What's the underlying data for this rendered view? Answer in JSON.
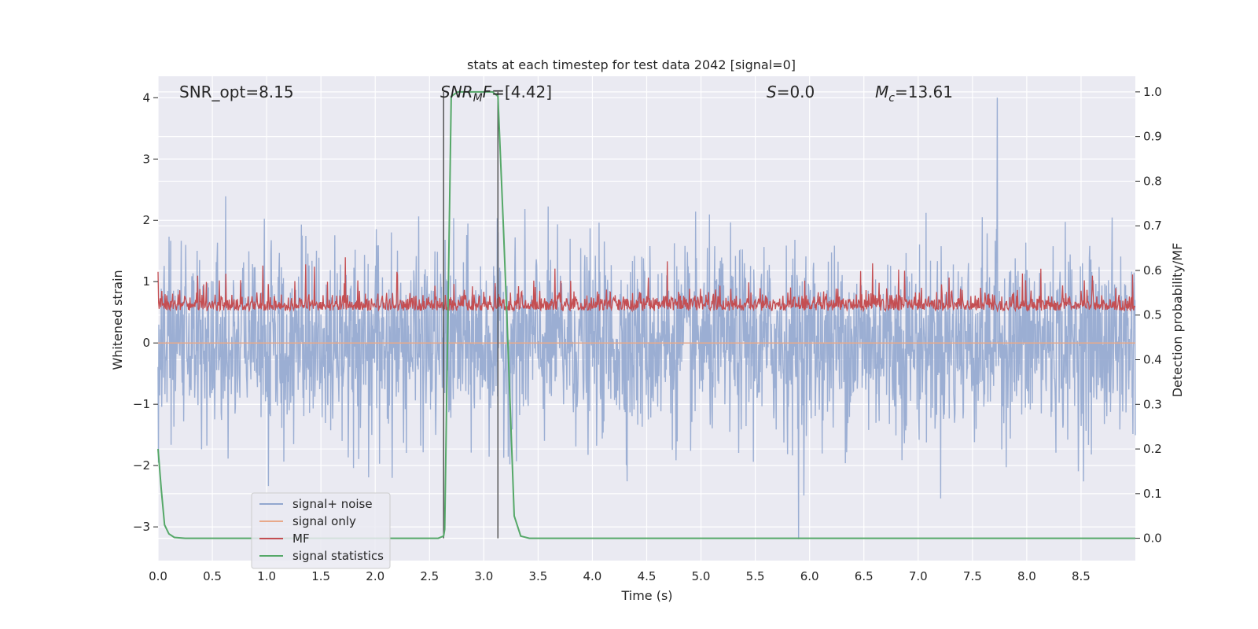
{
  "chart_data": {
    "type": "line",
    "title": "stats at each timestep for test data 2042 [signal=0]",
    "xlabel": "Time (s)",
    "ylabel_left": "Whitened strain",
    "ylabel_right": "Detection probability/MF",
    "xlim": [
      0,
      9.0
    ],
    "ylim_left": [
      -3.55,
      4.35
    ],
    "ylim_right": [
      -0.05,
      1.035
    ],
    "x_ticks": [
      "0.0",
      "0.5",
      "1.0",
      "1.5",
      "2.0",
      "2.5",
      "3.0",
      "3.5",
      "4.0",
      "4.5",
      "5.0",
      "5.5",
      "6.0",
      "6.5",
      "7.0",
      "7.5",
      "8.0",
      "8.5"
    ],
    "y_left_ticks": [
      "−3",
      "−2",
      "−1",
      "0",
      "1",
      "2",
      "3",
      "4"
    ],
    "y_right_ticks": [
      "0.0",
      "0.1",
      "0.2",
      "0.3",
      "0.4",
      "0.5",
      "0.6",
      "0.7",
      "0.8",
      "0.9",
      "1.0"
    ],
    "grid": true,
    "legend_position": "lower-left",
    "annotations": {
      "snr_opt": "SNR_opt=8.15",
      "snr_mf_sym": "SNR",
      "snr_mf_sub": "M",
      "snr_mf_sym2": "F",
      "snr_mf_val": "=[4.42]",
      "s_sym": "S",
      "s_val": "=0.0",
      "mc_sym": "M",
      "mc_sub": "c",
      "mc_val": "=13.61"
    },
    "vertical_markers_x": [
      2.63,
      3.13
    ],
    "series": [
      {
        "name": "signal+ noise",
        "axis": "left",
        "color": "#92a7cf",
        "description_points": {
          "x_start": 0,
          "x_end": 9.0,
          "typical_range": [
            -1.8,
            1.8
          ],
          "max": 4.0,
          "max_at": 7.73,
          "min": -3.2,
          "min_at": 5.9
        }
      },
      {
        "name": "signal only",
        "axis": "left",
        "color": "#e8a98a",
        "values_flat": 0.0
      },
      {
        "name": "MF",
        "axis": "right",
        "color": "#c44e52",
        "typical_range": [
          0.5,
          0.58
        ],
        "max": 0.63
      },
      {
        "name": "signal statistics",
        "axis": "right",
        "color": "#55a868",
        "x": [
          0.0,
          0.03,
          0.06,
          0.1,
          0.15,
          0.25,
          0.5,
          1.0,
          2.0,
          2.5,
          2.58,
          2.63,
          2.64,
          2.7,
          2.76,
          2.85,
          3.0,
          3.08,
          3.13,
          3.18,
          3.22,
          3.28,
          3.34,
          3.42,
          3.5,
          4.0,
          5.0,
          6.0,
          7.0,
          8.0,
          9.0
        ],
        "values": [
          0.2,
          0.11,
          0.03,
          0.01,
          0.002,
          0.0,
          0.0,
          0.0,
          0.0,
          0.0,
          0.0,
          0.005,
          0.02,
          0.99,
          1.0,
          1.0,
          1.0,
          1.0,
          0.99,
          0.7,
          0.45,
          0.05,
          0.005,
          0.0,
          0.0,
          0.0,
          0.0,
          0.0,
          0.0,
          0.0,
          0.0
        ]
      }
    ]
  }
}
